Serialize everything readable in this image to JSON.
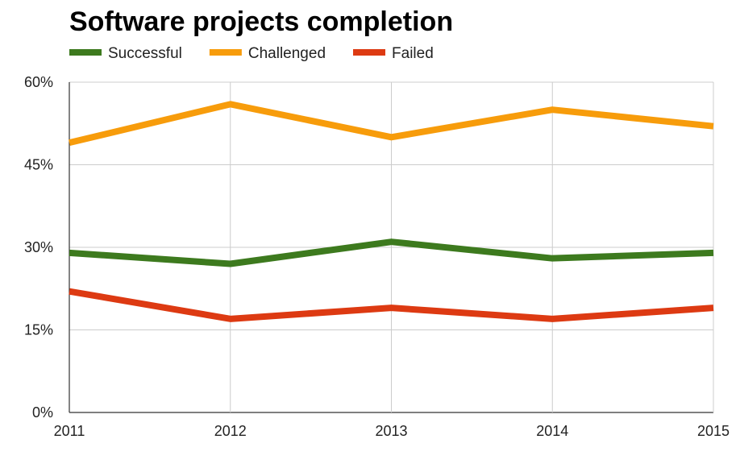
{
  "chart_data": {
    "type": "line",
    "title": "Software projects completion",
    "x": [
      "2011",
      "2012",
      "2013",
      "2014",
      "2015"
    ],
    "y_ticks": [
      "0%",
      "15%",
      "30%",
      "45%",
      "60%"
    ],
    "ylim": [
      0,
      60
    ],
    "grid": true,
    "legend_position": "top-left",
    "series": [
      {
        "name": "Successful",
        "color": "#3d7a1e",
        "values": [
          29,
          27,
          31,
          28,
          29
        ]
      },
      {
        "name": "Challenged",
        "color": "#f79c0b",
        "values": [
          49,
          56,
          50,
          55,
          52
        ]
      },
      {
        "name": "Failed",
        "color": "#dd3a12",
        "values": [
          22,
          17,
          19,
          17,
          19
        ]
      }
    ]
  }
}
